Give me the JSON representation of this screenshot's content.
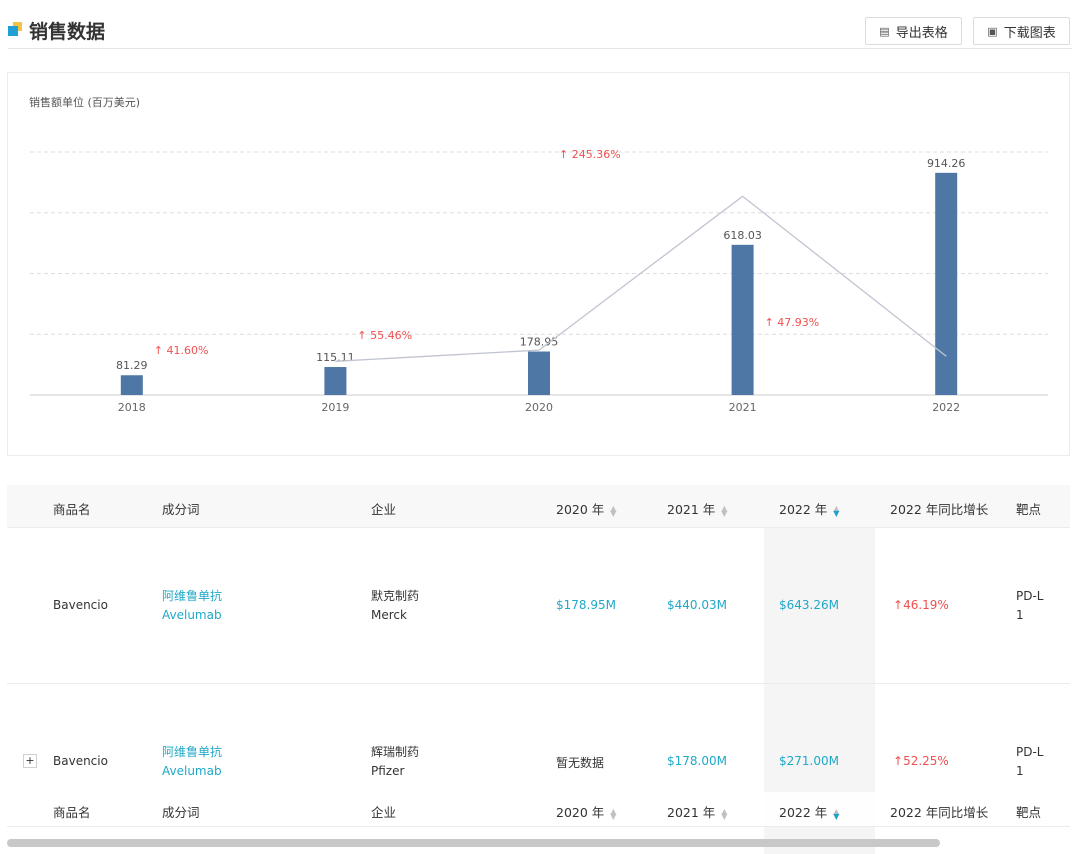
{
  "header": {
    "title": "销售数据",
    "export_table_label": "导出表格",
    "download_chart_label": "下载图表"
  },
  "colors": {
    "bar": "#4e77a6",
    "line": "#c0c4d0",
    "growth": "#f05050",
    "accent": "#20a8c8",
    "logo_blue": "#1f9fd6",
    "logo_yellow": "#f5c242"
  },
  "chart_data": {
    "type": "bar",
    "unit_label": "销售额单位 (百万美元)",
    "categories": [
      "2018",
      "2019",
      "2020",
      "2021",
      "2022"
    ],
    "values": [
      81.29,
      115.11,
      178.95,
      618.03,
      914.26
    ],
    "value_labels": [
      "81.29",
      "115.11",
      "178.95",
      "618.03",
      "914.26"
    ],
    "growth_line": {
      "points": [
        {
          "x": "2019",
          "y": 41.6
        },
        {
          "x": "2020",
          "y": 55.46
        },
        {
          "x": "2021",
          "y": 245.36
        },
        {
          "x": "2022",
          "y": 47.93
        }
      ],
      "labels": [
        "41.60%",
        "55.46%",
        "245.36%",
        "47.93%"
      ]
    },
    "ylim": [
      0,
      1000
    ],
    "grid": true
  },
  "table": {
    "columns": [
      "商品名",
      "成分词",
      "企业",
      "2020 年",
      "2021 年",
      "2022 年",
      "2022 年同比增长",
      "靶点"
    ],
    "rows": [
      {
        "product": "Bavencio",
        "ingredient_cn": "阿维鲁单抗",
        "ingredient_en": "Avelumab",
        "company_cn": "默克制药",
        "company_en": "Merck",
        "y2020": "$178.95M",
        "y2021": "$440.03M",
        "y2022": "$643.26M",
        "growth": "46.19%",
        "target_l1": "PD-L",
        "target_l2": "1"
      },
      {
        "product": "Bavencio",
        "ingredient_cn": "阿维鲁单抗",
        "ingredient_en": "Avelumab",
        "company_cn": "辉瑞制药",
        "company_en": "Pfizer",
        "y2020": "暂无数据",
        "y2021": "$178.00M",
        "y2022": "$271.00M",
        "growth": "52.25%",
        "target_l1": "PD-L",
        "target_l2": "1"
      }
    ],
    "expand_symbol": "+",
    "growth_arrow": "↑"
  }
}
